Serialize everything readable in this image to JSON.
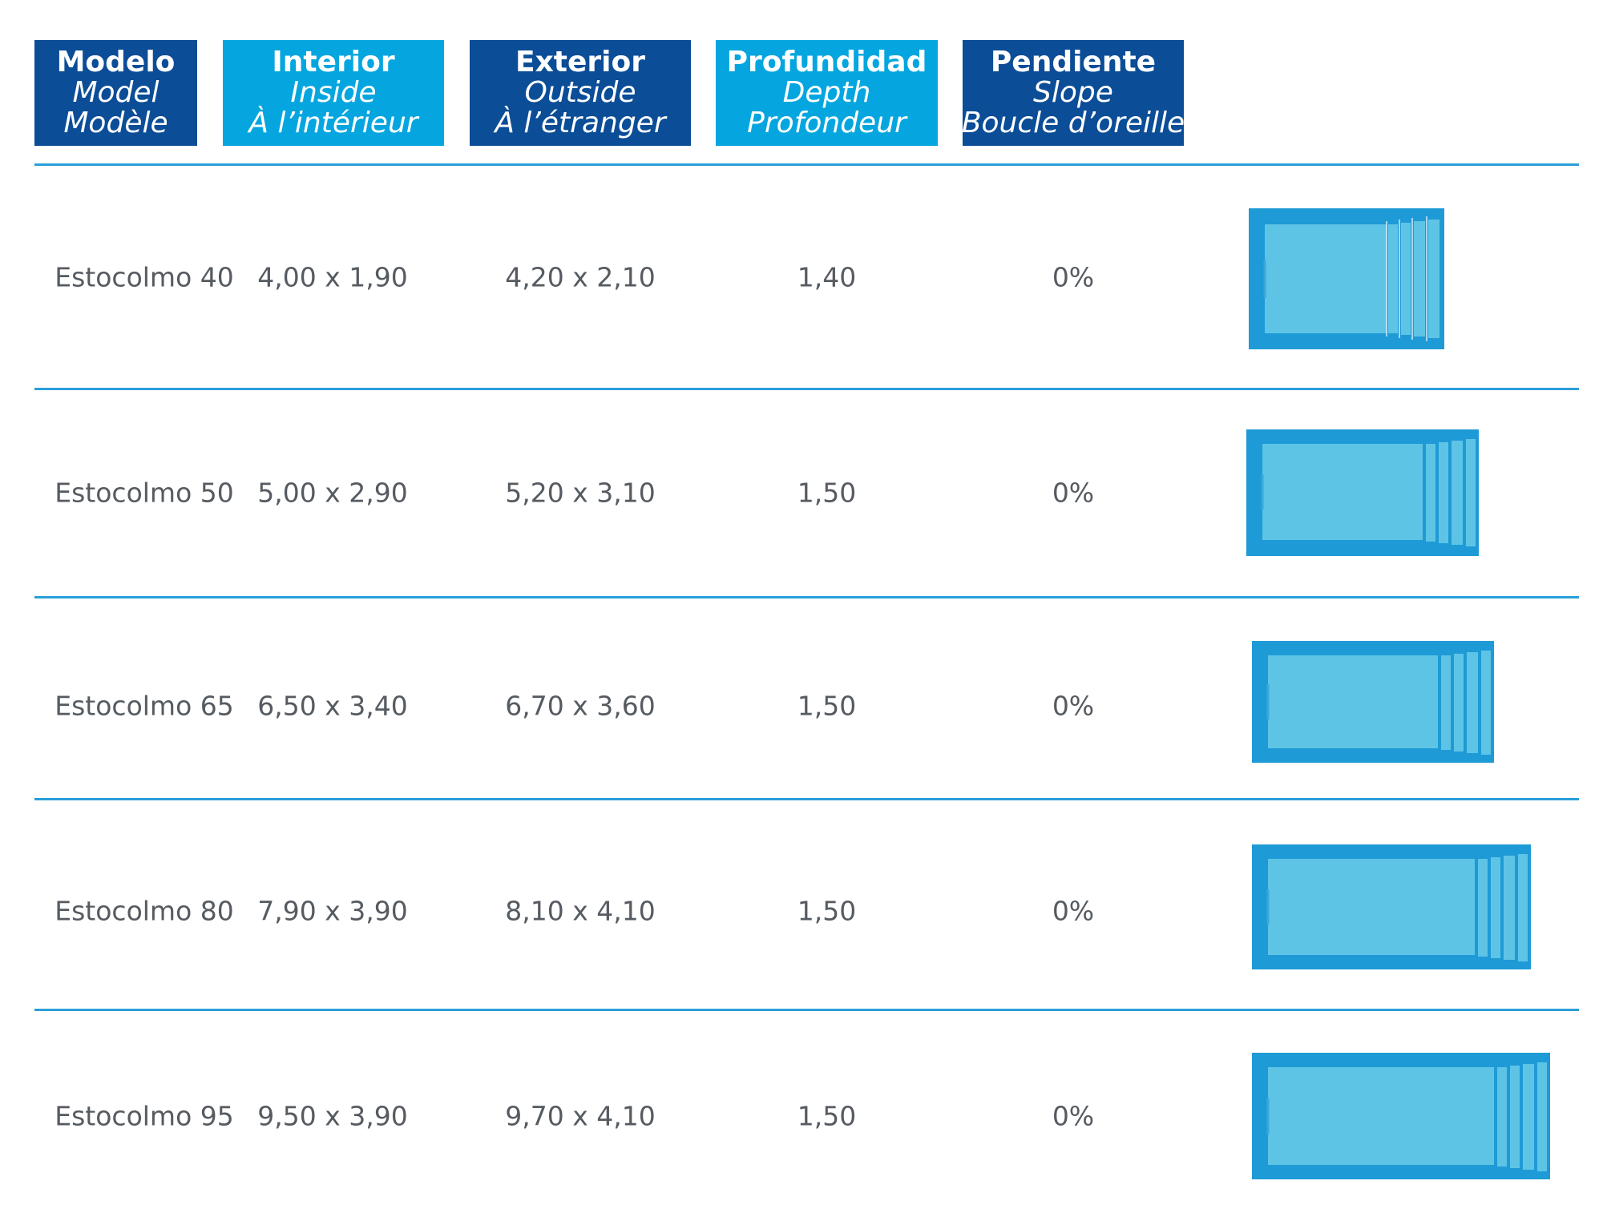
{
  "headers": [
    {
      "es": "Modelo",
      "en": "Model",
      "fr": "Modèle"
    },
    {
      "es": "Interior",
      "en": "Inside",
      "fr": "À l’intérieur"
    },
    {
      "es": "Exterior",
      "en": "Outside",
      "fr": "À l’étranger"
    },
    {
      "es": "Profundidad",
      "en": "Depth",
      "fr": "Profondeur"
    },
    {
      "es": "Pendiente",
      "en": "Slope",
      "fr": "Boucle d’oreille"
    }
  ],
  "rows": [
    {
      "model": "Estocolmo 40",
      "inside": "4,00 x 1,90",
      "outside": "4,20 x 2,10",
      "depth": "1,40",
      "slope": "0%"
    },
    {
      "model": "Estocolmo 50",
      "inside": "5,00 x 2,90",
      "outside": "5,20 x 3,10",
      "depth": "1,50",
      "slope": "0%"
    },
    {
      "model": "Estocolmo 65",
      "inside": "6,50 x 3,40",
      "outside": "6,70 x 3,60",
      "depth": "1,50",
      "slope": "0%"
    },
    {
      "model": "Estocolmo 80",
      "inside": "7,90 x 3,90",
      "outside": "8,10 x 4,10",
      "depth": "1,50",
      "slope": "0%"
    },
    {
      "model": "Estocolmo 95",
      "inside": "9,50 x 3,90",
      "outside": "9,70 x 4,10",
      "depth": "1,50",
      "slope": "0%"
    }
  ],
  "colors": {
    "header_dark": "#0b4d97",
    "header_light": "#05a6df",
    "rule": "#2a9fd8",
    "pool_border": "#1e9ad6",
    "pool_water": "#5ec4e6",
    "text": "#555b61"
  }
}
